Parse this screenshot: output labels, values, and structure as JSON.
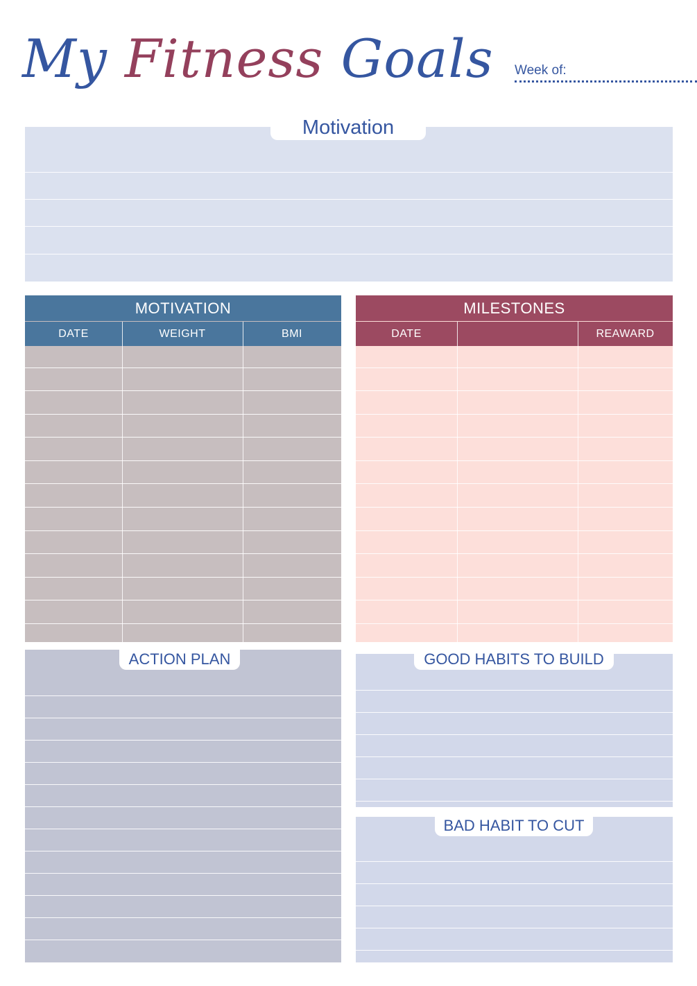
{
  "header": {
    "title_part1": "My ",
    "title_part2": "Fitness ",
    "title_part3": "Goals",
    "week_label": "Week of:"
  },
  "motivation_notes": {
    "title": "Motivation"
  },
  "motivation_table": {
    "title": "MOTIVATION",
    "columns": [
      "DATE",
      "WEIGHT",
      "BMI"
    ]
  },
  "milestones_table": {
    "title": "MILESTONES",
    "columns": [
      "DATE",
      "",
      "REAWARD"
    ]
  },
  "action_plan": {
    "title": "ACTION PLAN"
  },
  "good_habits": {
    "title": "GOOD HABITS TO BUILD"
  },
  "bad_habits": {
    "title": "BAD HABIT TO CUT"
  },
  "colors": {
    "title_blue": "#3556a0",
    "title_red": "#94405c",
    "motivation_header": "#4a769d",
    "motivation_body": "#c7bebf",
    "milestones_header": "#9c4a61",
    "milestones_body": "#fddfda",
    "notes_panel": "#dbe1ef",
    "action_panel": "#c1c4d3",
    "habits_panel": "#d2d8ea"
  }
}
